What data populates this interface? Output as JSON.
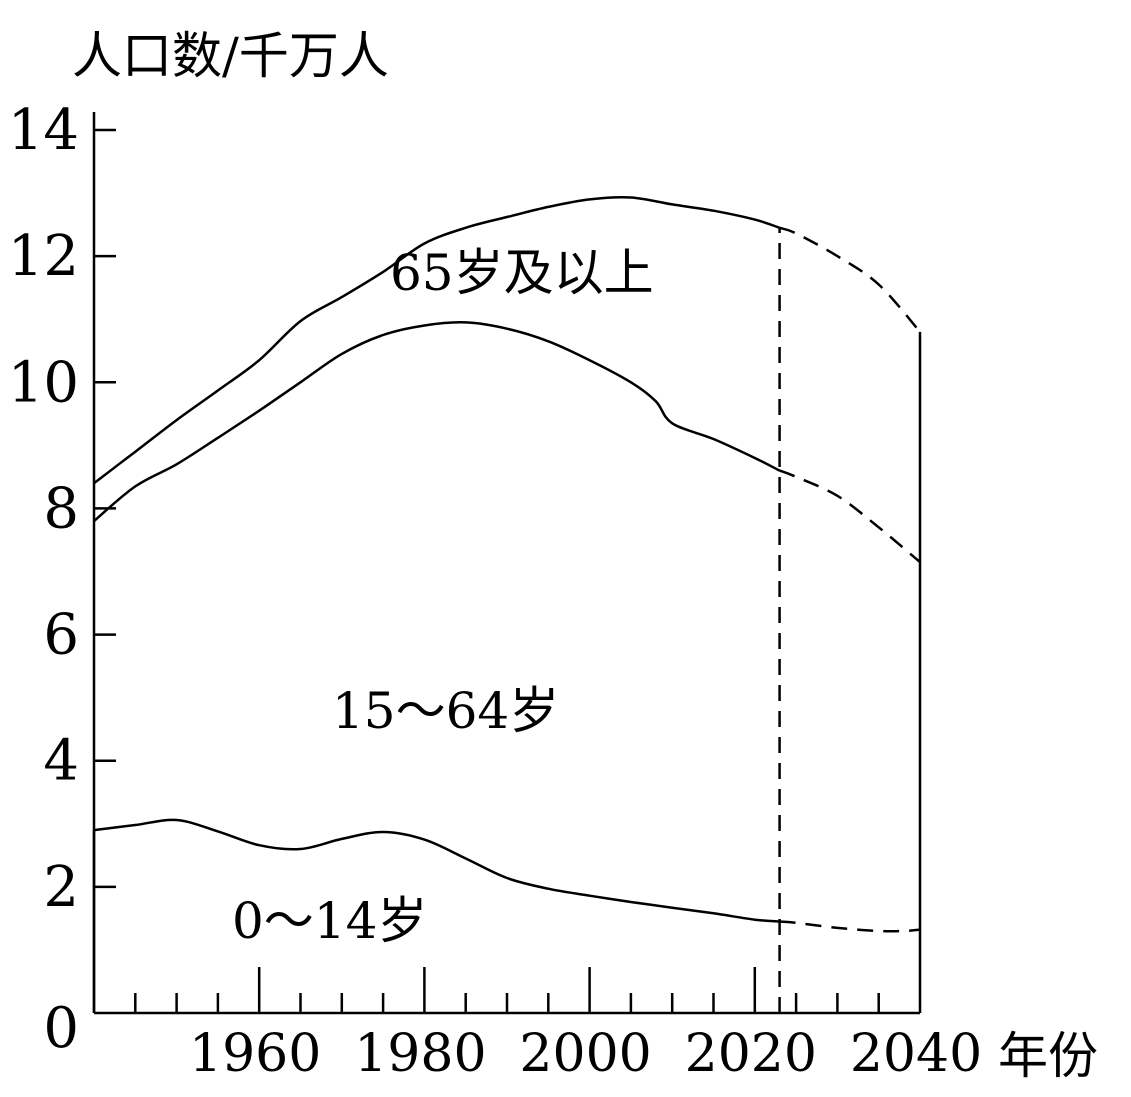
{
  "chart_data": {
    "type": "area",
    "ylabel": "人口数/千万人",
    "xlabel": "年份",
    "xlim": [
      1940,
      2040
    ],
    "ylim": [
      0,
      14
    ],
    "x_ticks": [
      1960,
      1980,
      2000,
      2020,
      2040
    ],
    "y_ticks": [
      0,
      2,
      4,
      6,
      8,
      10,
      12,
      14
    ],
    "projection_start": 2023,
    "grid": false,
    "line_color": "#000000",
    "boundaries": [
      {
        "name": "0~14岁",
        "label": "0～14岁",
        "observed": [
          [
            1940,
            2.9
          ],
          [
            1945,
            2.98
          ],
          [
            1950,
            3.06
          ],
          [
            1955,
            2.88
          ],
          [
            1960,
            2.66
          ],
          [
            1965,
            2.6
          ],
          [
            1970,
            2.76
          ],
          [
            1975,
            2.87
          ],
          [
            1980,
            2.75
          ],
          [
            1985,
            2.45
          ],
          [
            1990,
            2.14
          ],
          [
            1995,
            1.97
          ],
          [
            2000,
            1.86
          ],
          [
            2005,
            1.76
          ],
          [
            2010,
            1.67
          ],
          [
            2015,
            1.58
          ],
          [
            2020,
            1.48
          ],
          [
            2023,
            1.45
          ]
        ],
        "projected": [
          [
            2023,
            1.45
          ],
          [
            2025,
            1.43
          ],
          [
            2030,
            1.35
          ],
          [
            2035,
            1.3
          ],
          [
            2038,
            1.3
          ],
          [
            2040,
            1.32
          ]
        ]
      },
      {
        "name": "15~64岁",
        "label": "15～64岁",
        "observed": [
          [
            1940,
            7.8
          ],
          [
            1945,
            8.35
          ],
          [
            1950,
            8.7
          ],
          [
            1955,
            9.12
          ],
          [
            1960,
            9.55
          ],
          [
            1965,
            10.0
          ],
          [
            1970,
            10.45
          ],
          [
            1975,
            10.75
          ],
          [
            1980,
            10.9
          ],
          [
            1985,
            10.95
          ],
          [
            1990,
            10.85
          ],
          [
            1995,
            10.65
          ],
          [
            2000,
            10.35
          ],
          [
            2005,
            10.0
          ],
          [
            2008,
            9.7
          ],
          [
            2010,
            9.35
          ],
          [
            2015,
            9.1
          ],
          [
            2020,
            8.8
          ],
          [
            2023,
            8.6
          ]
        ],
        "projected": [
          [
            2023,
            8.6
          ],
          [
            2025,
            8.5
          ],
          [
            2030,
            8.2
          ],
          [
            2035,
            7.7
          ],
          [
            2040,
            7.15
          ]
        ]
      },
      {
        "name": "65岁及以上",
        "label": "65岁及以上",
        "observed": [
          [
            1940,
            8.4
          ],
          [
            1945,
            8.9
          ],
          [
            1950,
            9.4
          ],
          [
            1955,
            9.87
          ],
          [
            1960,
            10.35
          ],
          [
            1965,
            10.97
          ],
          [
            1970,
            11.35
          ],
          [
            1975,
            11.75
          ],
          [
            1980,
            12.2
          ],
          [
            1985,
            12.45
          ],
          [
            1990,
            12.62
          ],
          [
            1995,
            12.78
          ],
          [
            2000,
            12.9
          ],
          [
            2005,
            12.93
          ],
          [
            2010,
            12.82
          ],
          [
            2015,
            12.72
          ],
          [
            2020,
            12.58
          ],
          [
            2023,
            12.45
          ]
        ],
        "projected": [
          [
            2023,
            12.45
          ],
          [
            2025,
            12.36
          ],
          [
            2030,
            12.0
          ],
          [
            2035,
            11.55
          ],
          [
            2040,
            10.8
          ]
        ]
      }
    ]
  }
}
